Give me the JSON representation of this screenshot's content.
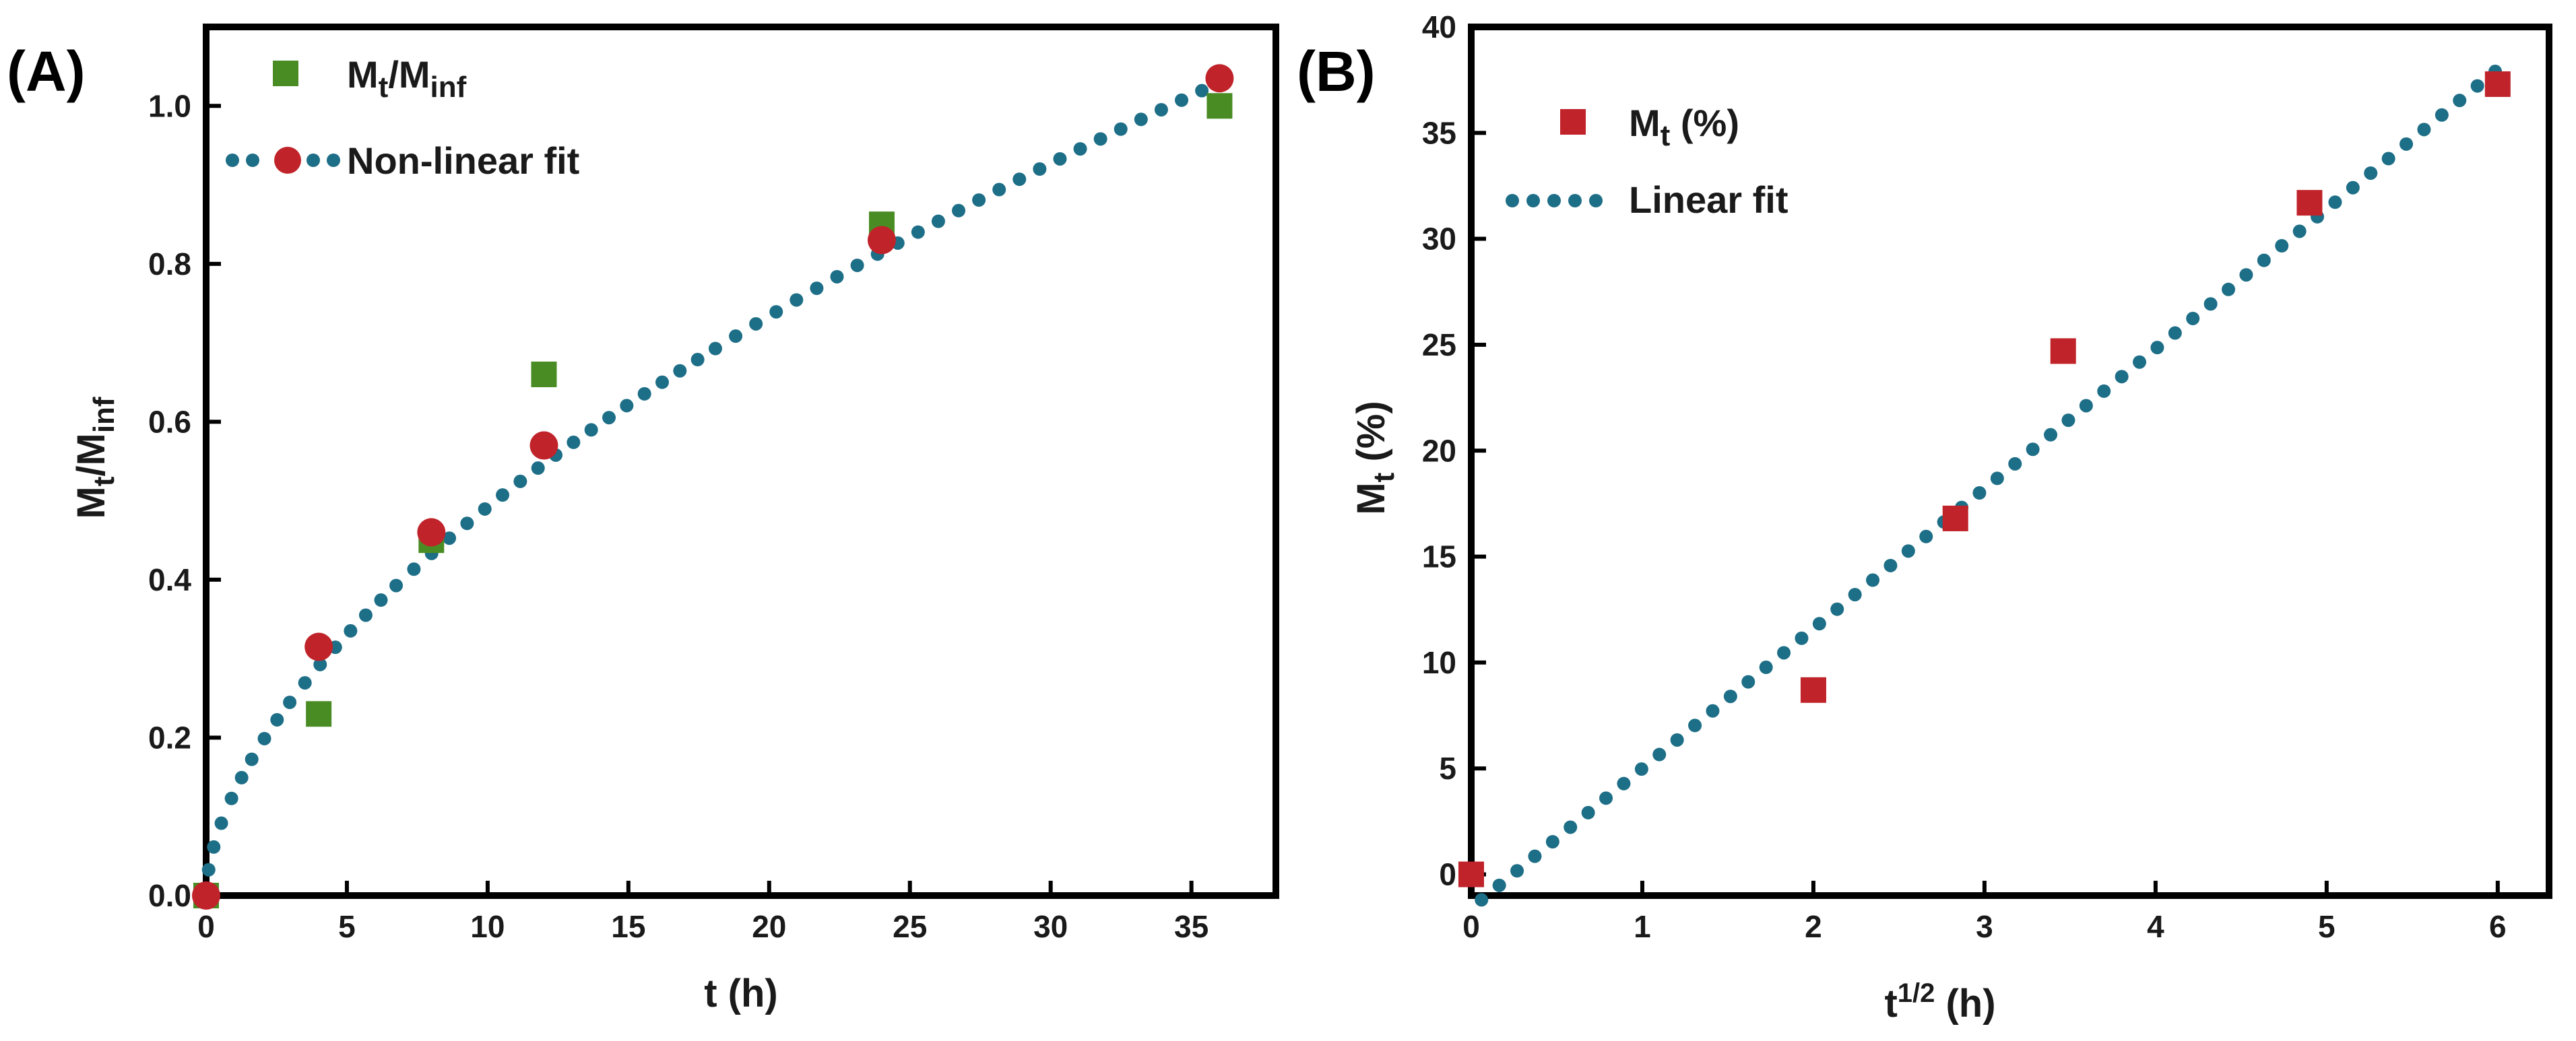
{
  "chart_data": [
    {
      "panel": "(A)",
      "type": "scatter",
      "xlabel": "t (h)",
      "ylabel": {
        "base": "M",
        "sub1": "t",
        "mid": "/M",
        "sub2": "inf"
      },
      "xlim": [
        0,
        38
      ],
      "ylim": [
        0,
        1.1
      ],
      "xticks": [
        "0",
        "5",
        "10",
        "15",
        "20",
        "25",
        "30",
        "35"
      ],
      "yticks": [
        "0.0",
        "0.2",
        "0.4",
        "0.6",
        "0.8",
        "1.0"
      ],
      "legend": {
        "entries": [
          {
            "label_base": "M",
            "label_sub1": "t",
            "label_mid": "/M",
            "label_sub2": "inf"
          },
          {
            "label": "Non-linear fit"
          }
        ]
      },
      "series": [
        {
          "name": "Mt/Minf",
          "marker": "square",
          "color": "#4a8c24",
          "x": [
            0,
            4,
            8,
            12,
            24,
            36
          ],
          "y": [
            0.0,
            0.23,
            0.45,
            0.66,
            0.85,
            1.0
          ]
        },
        {
          "name": "Non-linear fit (points)",
          "marker": "circle",
          "color": "#c0232a",
          "x": [
            0,
            4,
            8,
            12,
            24,
            36
          ],
          "y": [
            0.0,
            0.315,
            0.46,
            0.57,
            0.83,
            1.035
          ]
        }
      ],
      "fit": {
        "type": "power",
        "k": 0.1307,
        "n": 0.576,
        "xrange": [
          0,
          36
        ],
        "color": "#1d6e87"
      }
    },
    {
      "panel": "(B)",
      "type": "scatter",
      "xlabel": {
        "base": "t",
        "sup": "1/2",
        "rest": " (h)"
      },
      "ylabel": {
        "base": "M",
        "sub": "t",
        "rest": " (%)"
      },
      "xlim": [
        0,
        6.3
      ],
      "ylim": [
        -1,
        40
      ],
      "xticks": [
        "0",
        "1",
        "2",
        "3",
        "4",
        "5",
        "6"
      ],
      "yticks": [
        "0",
        "5",
        "10",
        "15",
        "20",
        "25",
        "30",
        "35",
        "40"
      ],
      "legend": {
        "entries": [
          {
            "label_base": "M",
            "label_sub": "t",
            "label_rest": " (%)"
          },
          {
            "label": "Linear fit"
          }
        ]
      },
      "series": [
        {
          "name": "Mt (%)",
          "marker": "square",
          "color": "#c0232a",
          "x": [
            0,
            2,
            2.83,
            3.46,
            4.9,
            6
          ],
          "y": [
            0,
            8.7,
            16.8,
            24.7,
            31.7,
            37.3
          ]
        }
      ],
      "fit": {
        "type": "linear",
        "slope": 6.6,
        "intercept": -1.6,
        "xrange": [
          0.06,
          6.0
        ],
        "color": "#1d6e87"
      }
    }
  ]
}
